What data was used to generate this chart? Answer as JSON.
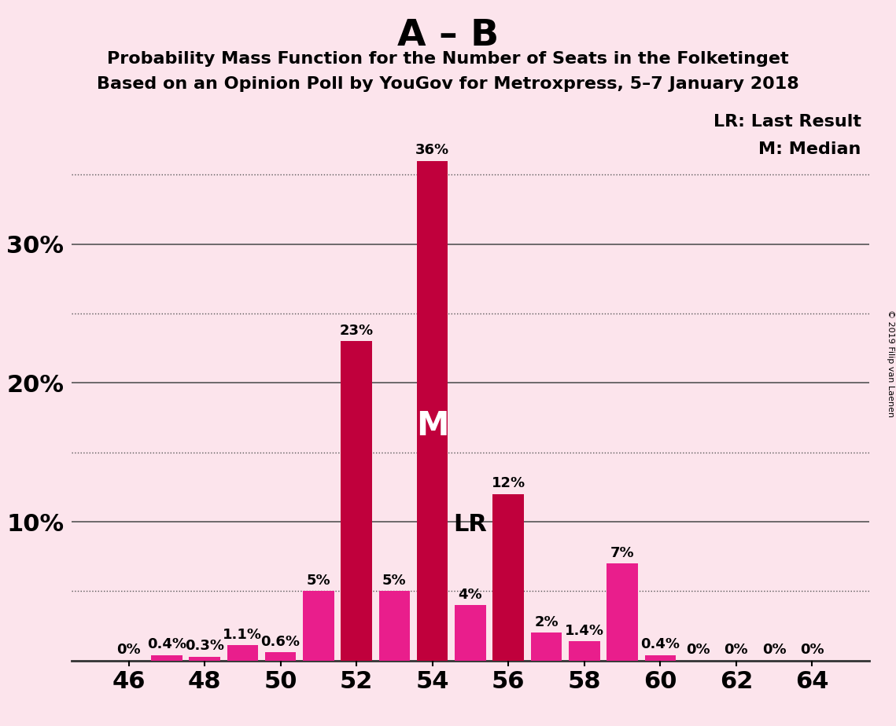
{
  "title_main": "A – B",
  "title_sub1": "Probability Mass Function for the Number of Seats in the Folketinget",
  "title_sub2": "Based on an Opinion Poll by YouGov for Metroxpress, 5–7 January 2018",
  "background_color": "#fce4ec",
  "seats": [
    46,
    47,
    48,
    49,
    50,
    51,
    52,
    53,
    54,
    55,
    56,
    57,
    58,
    59,
    60,
    61,
    62,
    63,
    64
  ],
  "values": [
    0.0,
    0.4,
    0.3,
    1.1,
    0.6,
    5.0,
    23.0,
    5.0,
    36.0,
    4.0,
    12.0,
    2.0,
    1.4,
    7.0,
    0.4,
    0.0,
    0.0,
    0.0,
    0.0
  ],
  "labels": [
    "0%",
    "0.4%",
    "0.3%",
    "1.1%",
    "0.6%",
    "5%",
    "23%",
    "5%",
    "36%",
    "4%",
    "12%",
    "2%",
    "1.4%",
    "7%",
    "0.4%",
    "0%",
    "0%",
    "0%",
    "0%"
  ],
  "bar_colors": [
    "#e91e8c",
    "#e91e8c",
    "#e91e8c",
    "#e91e8c",
    "#e91e8c",
    "#e91e8c",
    "#c0003c",
    "#e91e8c",
    "#c0003c",
    "#e91e8c",
    "#c0003c",
    "#e91e8c",
    "#e91e8c",
    "#e91e8c",
    "#e91e8c",
    "#e91e8c",
    "#e91e8c",
    "#e91e8c",
    "#e91e8c"
  ],
  "median_seat": 54,
  "lr_seat": 55,
  "ylim_max": 40,
  "solid_gridlines": [
    10,
    20,
    30
  ],
  "dotted_gridlines": [
    5,
    15,
    25,
    35
  ],
  "ytick_vals": [
    10,
    20,
    30
  ],
  "ytick_labels_left": [
    "10%",
    "20%",
    "30%"
  ],
  "grid_color": "#555555",
  "axis_color": "#333333",
  "copyright_text": "© 2019 Filip van Laenen",
  "legend_lr": "LR: Last Result",
  "legend_m": "M: Median",
  "label_fontsize": 13,
  "title_main_fontsize": 34,
  "title_sub_fontsize": 16,
  "tick_fontsize": 22,
  "m_fontsize": 30,
  "lr_fontsize": 22
}
